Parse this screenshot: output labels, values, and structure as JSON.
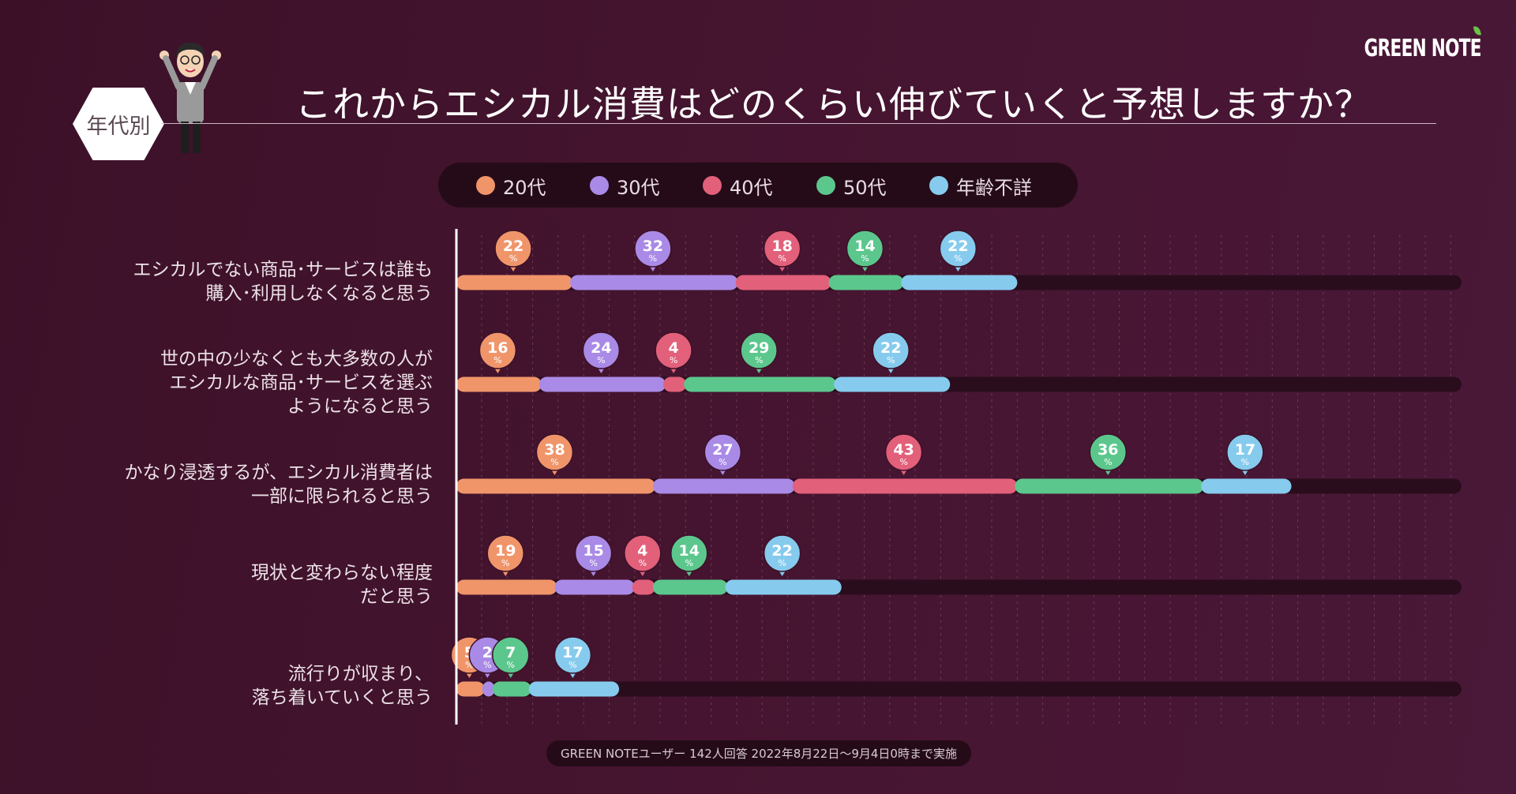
{
  "brand": "GREEN NOTE",
  "badge": "年代別",
  "title": "これからエシカル消費はどのくらい伸びていくと予想しますか？",
  "footer": "GREEN NOTEユーザー 142人回答 2022年8月22日〜9月4日0時まで実施",
  "colors": {
    "age20": "#f0956a",
    "age30": "#a98ae6",
    "age40": "#e2607a",
    "age50": "#5cc78d",
    "unknown": "#86cbee",
    "track": "#2a0d1d"
  },
  "chart_data": {
    "type": "bar",
    "stacked": true,
    "orientation": "horizontal",
    "title": "これからエシカル消費はどのくらい伸びていくと予想しますか？",
    "unit": "%",
    "legend": [
      "20代",
      "30代",
      "40代",
      "50代",
      "年齢不詳"
    ],
    "categories": [
      [
        "エシカルでない商品･サービスは誰も",
        "購入･利用しなくなると思う"
      ],
      [
        "世の中の少なくとも大多数の人が",
        "エシカルな商品･サービスを選ぶ",
        "ようになると思う"
      ],
      [
        "かなり浸透するが、エシカル消費者は",
        "一部に限られると思う"
      ],
      [
        "現状と変わらない程度",
        "だと思う"
      ],
      [
        "流行りが収まり、",
        "落ち着いていくと思う"
      ]
    ],
    "series": [
      {
        "name": "20代",
        "values": [
          22,
          16,
          38,
          19,
          5
        ]
      },
      {
        "name": "30代",
        "values": [
          32,
          24,
          27,
          15,
          2
        ]
      },
      {
        "name": "40代",
        "values": [
          18,
          4,
          43,
          4,
          0
        ]
      },
      {
        "name": "50代",
        "values": [
          14,
          29,
          36,
          14,
          7
        ]
      },
      {
        "name": "年齢不詳",
        "values": [
          22,
          22,
          17,
          22,
          17
        ]
      }
    ],
    "xlim": [
      0,
      196
    ]
  }
}
